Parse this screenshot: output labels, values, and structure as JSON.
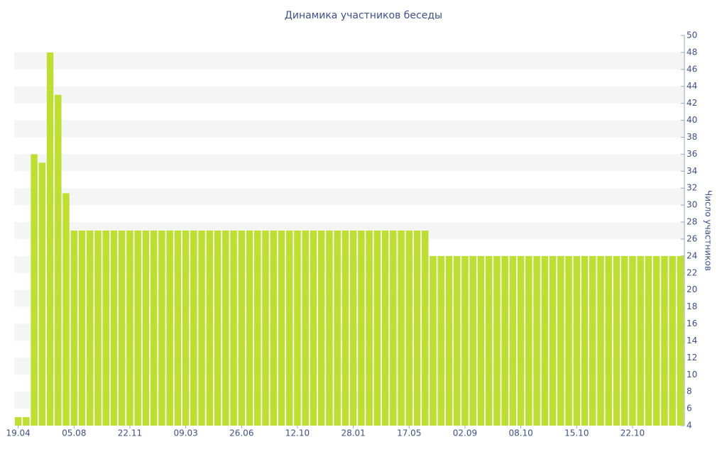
{
  "chart_data": {
    "type": "bar",
    "title": "Динамика участников беседы",
    "y_label": "Число участников",
    "categories": [
      "19.04",
      null,
      null,
      null,
      null,
      null,
      null,
      "05.08",
      null,
      null,
      null,
      null,
      null,
      null,
      "22.11",
      null,
      null,
      null,
      null,
      null,
      null,
      "09.03",
      null,
      null,
      null,
      null,
      null,
      null,
      "26.06",
      null,
      null,
      null,
      null,
      null,
      null,
      "12.10",
      null,
      null,
      null,
      null,
      null,
      null,
      "28.01",
      null,
      null,
      null,
      null,
      null,
      null,
      "17.05",
      null,
      null,
      null,
      null,
      null,
      null,
      "02.09",
      null,
      null,
      null,
      null,
      null,
      null,
      "08.10",
      null,
      null,
      null,
      null,
      null,
      null,
      "15.10",
      null,
      null,
      null,
      null,
      null,
      null,
      "22.10",
      null,
      null,
      null,
      null,
      null,
      null
    ],
    "values": [
      5,
      5,
      36,
      35,
      48,
      43,
      31.4,
      27,
      27,
      27,
      27,
      27,
      27,
      27,
      27,
      27,
      27,
      27,
      27,
      27,
      27,
      27,
      27,
      27,
      27,
      27,
      27,
      27,
      27,
      27,
      27,
      27,
      27,
      27,
      27,
      27,
      27,
      27,
      27,
      27,
      27,
      27,
      27,
      27,
      27,
      27,
      27,
      27,
      27,
      27,
      27,
      27,
      24,
      24,
      24,
      24,
      24,
      24,
      24,
      24,
      24,
      24,
      24,
      24,
      24,
      24,
      24,
      24,
      24,
      24,
      24,
      24,
      24,
      24,
      24,
      24,
      24,
      24,
      24,
      24,
      24,
      24,
      24,
      24
    ],
    "color": "#bedf30",
    "ylim": [
      4,
      50
    ],
    "yticks": [
      4,
      6,
      8,
      10,
      12,
      14,
      16,
      18,
      20,
      22,
      24,
      26,
      28,
      30,
      32,
      34,
      36,
      38,
      40,
      42,
      44,
      46,
      48,
      50
    ],
    "grid": true,
    "y_axis_side": "right"
  }
}
